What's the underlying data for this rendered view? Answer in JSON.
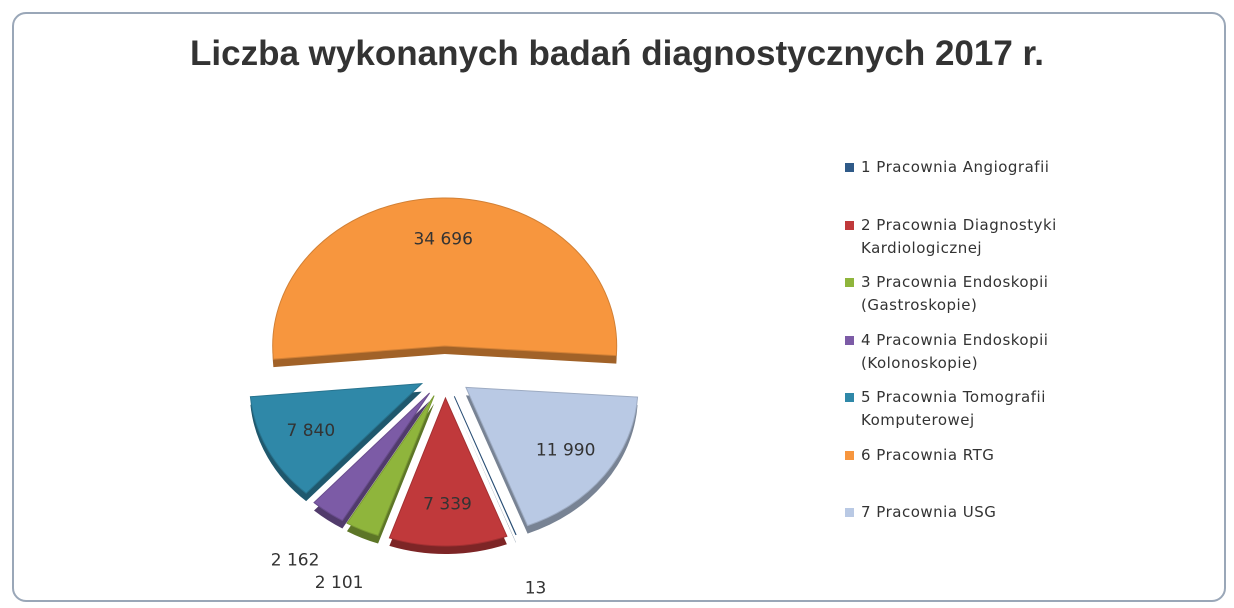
{
  "chart_data": {
    "type": "pie",
    "title": "Liczba wykonanych badań diagnostycznych 2017 r.",
    "categories": [
      "1 Pracownia Angiografii",
      "2 Pracownia Diagnostyki Kardiologicznej",
      "3 Pracownia Endoskopii (Gastroskopie)",
      "4 Pracownia Endoskopii (Kolonoskopie)",
      "5 Pracownia Tomografii Komputerowej",
      "6 Pracownia RTG",
      "7 Pracownia USG"
    ],
    "values": [
      13,
      7339,
      2101,
      2162,
      7840,
      34696,
      11990
    ],
    "value_labels": [
      "13",
      "7 339",
      "2 101",
      "2 162",
      "7 840",
      "34 696",
      "11 990"
    ],
    "colors": [
      "#2f5a88",
      "#c0393b",
      "#8fb53c",
      "#7c5ba6",
      "#2f88a8",
      "#f7963e",
      "#b9c9e4"
    ],
    "legend": "right"
  }
}
